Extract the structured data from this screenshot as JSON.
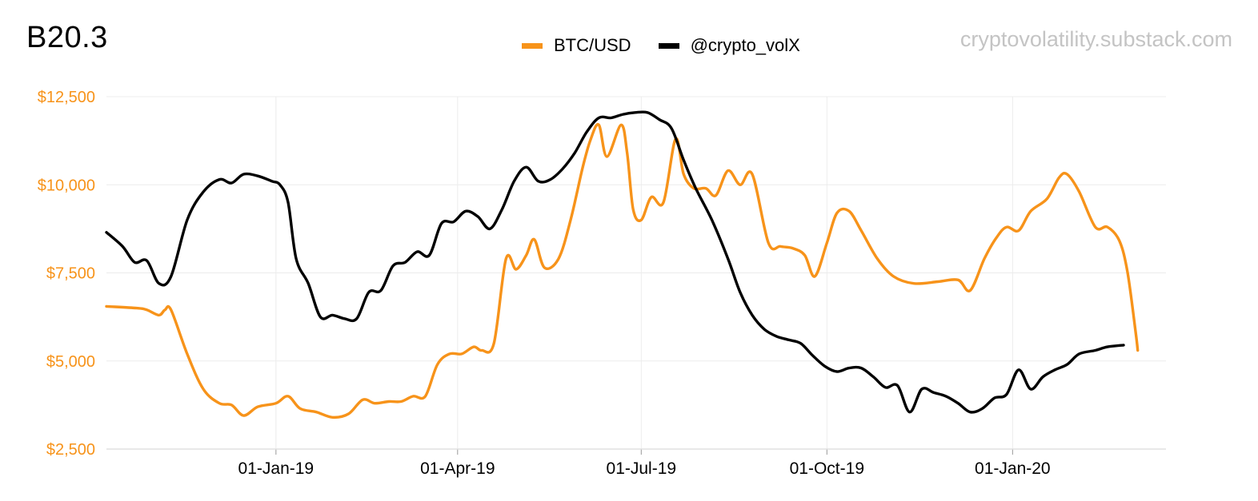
{
  "colors": {
    "btc": "#f7931a",
    "vol": "#000000",
    "grid": "#ececec",
    "axis": "#e0e0e0",
    "ytick": "#f7931a"
  },
  "header": {
    "title": "B20.3",
    "source": "cryptovolatility.substack.com"
  },
  "chart_data": {
    "type": "line",
    "title": "B20.3",
    "legend_position": "top-center",
    "y_axis": {
      "ticks": [
        "$2,500",
        "$5,000",
        "$7,500",
        "$10,000",
        "$12,500"
      ],
      "tick_values": [
        2500,
        5000,
        7500,
        10000,
        12500
      ],
      "ylim": [
        2500,
        12500
      ],
      "grid": true
    },
    "x_axis": {
      "ticks": [
        "01-Jan-19",
        "01-Apr-19",
        "01-Jul-19",
        "01-Oct-19",
        "01-Jan-20"
      ],
      "tick_days": [
        64,
        154,
        245,
        337,
        429
      ],
      "xlim": [
        -20,
        505
      ]
    },
    "series": [
      {
        "name": "BTC/USD",
        "color": "#f7931a",
        "points": [
          [
            -20,
            6550
          ],
          [
            -5,
            6500
          ],
          [
            0,
            6450
          ],
          [
            6,
            6300
          ],
          [
            9,
            6450
          ],
          [
            12,
            6450
          ],
          [
            20,
            5200
          ],
          [
            28,
            4200
          ],
          [
            36,
            3800
          ],
          [
            42,
            3750
          ],
          [
            48,
            3450
          ],
          [
            55,
            3700
          ],
          [
            64,
            3800
          ],
          [
            70,
            4000
          ],
          [
            76,
            3650
          ],
          [
            84,
            3550
          ],
          [
            92,
            3400
          ],
          [
            100,
            3500
          ],
          [
            107,
            3900
          ],
          [
            113,
            3800
          ],
          [
            120,
            3850
          ],
          [
            126,
            3850
          ],
          [
            132,
            4000
          ],
          [
            138,
            4000
          ],
          [
            144,
            4900
          ],
          [
            150,
            5200
          ],
          [
            156,
            5200
          ],
          [
            162,
            5400
          ],
          [
            166,
            5300
          ],
          [
            172,
            5500
          ],
          [
            178,
            7900
          ],
          [
            183,
            7600
          ],
          [
            188,
            8000
          ],
          [
            192,
            8450
          ],
          [
            197,
            7650
          ],
          [
            204,
            7900
          ],
          [
            210,
            9000
          ],
          [
            216,
            10500
          ],
          [
            220,
            11300
          ],
          [
            224,
            11700
          ],
          [
            228,
            10800
          ],
          [
            235,
            11700
          ],
          [
            238,
            10900
          ],
          [
            241,
            9300
          ],
          [
            245,
            9000
          ],
          [
            250,
            9650
          ],
          [
            256,
            9500
          ],
          [
            262,
            11300
          ],
          [
            266,
            10300
          ],
          [
            271,
            9900
          ],
          [
            277,
            9900
          ],
          [
            282,
            9700
          ],
          [
            288,
            10400
          ],
          [
            294,
            10000
          ],
          [
            300,
            10300
          ],
          [
            308,
            8350
          ],
          [
            314,
            8250
          ],
          [
            320,
            8200
          ],
          [
            326,
            8000
          ],
          [
            331,
            7400
          ],
          [
            337,
            8350
          ],
          [
            342,
            9200
          ],
          [
            348,
            9250
          ],
          [
            354,
            8700
          ],
          [
            362,
            7900
          ],
          [
            370,
            7400
          ],
          [
            380,
            7200
          ],
          [
            392,
            7250
          ],
          [
            402,
            7300
          ],
          [
            408,
            7000
          ],
          [
            415,
            7900
          ],
          [
            421,
            8500
          ],
          [
            426,
            8800
          ],
          [
            432,
            8700
          ],
          [
            438,
            9250
          ],
          [
            446,
            9600
          ],
          [
            452,
            10200
          ],
          [
            456,
            10300
          ],
          [
            462,
            9800
          ],
          [
            470,
            8800
          ],
          [
            476,
            8800
          ],
          [
            482,
            8400
          ],
          [
            486,
            7500
          ],
          [
            490,
            5800
          ],
          [
            491,
            5300
          ]
        ]
      },
      {
        "name": "@crypto_volX",
        "color": "#000000",
        "points": [
          [
            -20,
            8650
          ],
          [
            -12,
            8250
          ],
          [
            -6,
            7800
          ],
          [
            0,
            7850
          ],
          [
            6,
            7200
          ],
          [
            12,
            7400
          ],
          [
            20,
            9000
          ],
          [
            28,
            9800
          ],
          [
            36,
            10150
          ],
          [
            42,
            10050
          ],
          [
            48,
            10300
          ],
          [
            55,
            10250
          ],
          [
            62,
            10100
          ],
          [
            66,
            10000
          ],
          [
            70,
            9500
          ],
          [
            74,
            7900
          ],
          [
            80,
            7200
          ],
          [
            86,
            6250
          ],
          [
            92,
            6300
          ],
          [
            98,
            6200
          ],
          [
            104,
            6200
          ],
          [
            110,
            6950
          ],
          [
            116,
            7000
          ],
          [
            122,
            7700
          ],
          [
            128,
            7800
          ],
          [
            134,
            8100
          ],
          [
            140,
            8000
          ],
          [
            146,
            8900
          ],
          [
            152,
            8950
          ],
          [
            158,
            9250
          ],
          [
            164,
            9100
          ],
          [
            170,
            8750
          ],
          [
            176,
            9300
          ],
          [
            182,
            10100
          ],
          [
            188,
            10500
          ],
          [
            194,
            10100
          ],
          [
            200,
            10150
          ],
          [
            206,
            10450
          ],
          [
            212,
            10900
          ],
          [
            218,
            11500
          ],
          [
            224,
            11900
          ],
          [
            230,
            11900
          ],
          [
            236,
            12000
          ],
          [
            242,
            12050
          ],
          [
            248,
            12050
          ],
          [
            254,
            11850
          ],
          [
            260,
            11600
          ],
          [
            266,
            10700
          ],
          [
            272,
            9900
          ],
          [
            280,
            9000
          ],
          [
            288,
            7900
          ],
          [
            294,
            6950
          ],
          [
            300,
            6300
          ],
          [
            306,
            5900
          ],
          [
            312,
            5700
          ],
          [
            318,
            5600
          ],
          [
            324,
            5500
          ],
          [
            330,
            5150
          ],
          [
            336,
            4850
          ],
          [
            342,
            4700
          ],
          [
            348,
            4800
          ],
          [
            354,
            4800
          ],
          [
            360,
            4550
          ],
          [
            366,
            4250
          ],
          [
            372,
            4300
          ],
          [
            378,
            3550
          ],
          [
            384,
            4200
          ],
          [
            390,
            4100
          ],
          [
            396,
            4000
          ],
          [
            402,
            3800
          ],
          [
            408,
            3550
          ],
          [
            414,
            3650
          ],
          [
            420,
            3950
          ],
          [
            426,
            4050
          ],
          [
            432,
            4750
          ],
          [
            438,
            4200
          ],
          [
            444,
            4550
          ],
          [
            450,
            4750
          ],
          [
            456,
            4900
          ],
          [
            462,
            5200
          ],
          [
            470,
            5300
          ],
          [
            476,
            5400
          ],
          [
            484,
            5450
          ]
        ]
      }
    ]
  }
}
